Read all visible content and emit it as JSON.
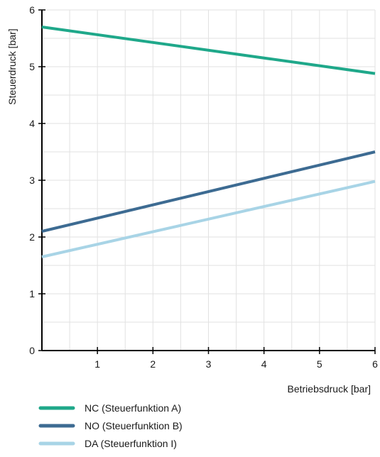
{
  "chart_data": {
    "type": "line",
    "xlabel": "Betriebsdruck [bar]",
    "ylabel": "Steuerdruck [bar]",
    "xlim": [
      0,
      6
    ],
    "ylim": [
      0,
      6
    ],
    "xticks": [
      "1",
      "2",
      "3",
      "4",
      "5",
      "6"
    ],
    "yticks": [
      "0",
      "1",
      "2",
      "3",
      "4",
      "5",
      "6"
    ],
    "grid": true,
    "legend_position": "bottom",
    "series": [
      {
        "name": "NC (Steuerfunktion A)",
        "color": "#1fa88a",
        "x": [
          0,
          6
        ],
        "y": [
          5.7,
          4.88
        ]
      },
      {
        "name": "NO (Steuerfunktion B)",
        "color": "#3d6b92",
        "x": [
          0,
          6
        ],
        "y": [
          2.1,
          3.5
        ]
      },
      {
        "name": "DA (Steuerfunktion I)",
        "color": "#a8d4e6",
        "x": [
          0,
          6
        ],
        "y": [
          1.65,
          2.98
        ]
      }
    ]
  }
}
